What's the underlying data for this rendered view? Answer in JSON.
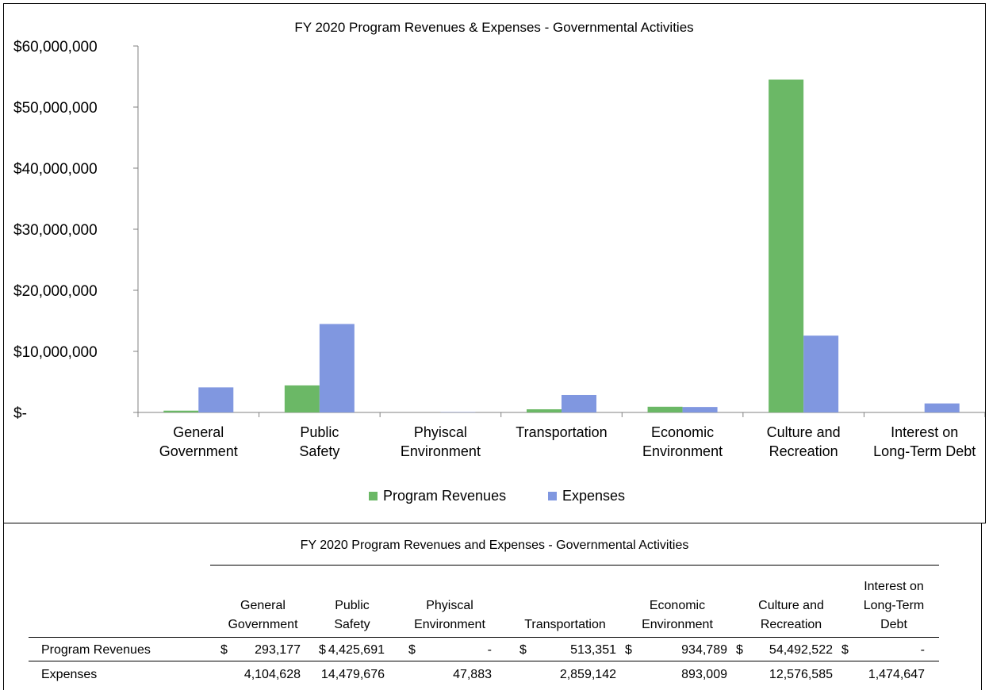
{
  "chart_data": {
    "type": "bar",
    "title": "FY 2020 Program Revenues & Expenses - Governmental  Activities",
    "categories": [
      [
        "General",
        "Government"
      ],
      [
        "Public",
        "Safety"
      ],
      [
        "Phyiscal",
        "Environment"
      ],
      [
        "Transportation"
      ],
      [
        "Economic",
        "Environment"
      ],
      [
        "Culture and",
        "Recreation"
      ],
      [
        "Interest on",
        "Long-Term Debt"
      ]
    ],
    "series": [
      {
        "name": "Program Revenues",
        "color": "#6bb866",
        "values": [
          293177,
          4425691,
          0,
          513351,
          934789,
          54492522,
          0
        ]
      },
      {
        "name": "Expenses",
        "color": "#8097e0",
        "values": [
          4104628,
          14479676,
          47883,
          2859142,
          893009,
          12576585,
          1474647
        ]
      }
    ],
    "y_ticks": [
      "$-",
      "$10,000,000",
      "$20,000,000",
      "$30,000,000",
      "$40,000,000",
      "$50,000,000",
      "$60,000,000"
    ],
    "ylim": [
      0,
      60000000
    ],
    "grid": false,
    "legend": "bottom-center"
  },
  "table": {
    "title": "FY 2020 Program Revenues and Expenses - Governmental Activities",
    "columns": [
      [
        "General",
        "Government"
      ],
      [
        "Public",
        "Safety"
      ],
      [
        "Phyiscal",
        "Environment"
      ],
      [
        "Transportation"
      ],
      [
        "Economic",
        "Environment"
      ],
      [
        "Culture and",
        "Recreation"
      ],
      [
        "Interest on",
        "Long-Term",
        "Debt"
      ]
    ],
    "rows": [
      {
        "label": "Program Revenues",
        "dollar_signs": [
          "$",
          "$",
          "$",
          "$",
          "$",
          "$",
          "$"
        ],
        "values": [
          "293,177",
          "4,425,691",
          "-",
          "513,351",
          "934,789",
          "54,492,522",
          "-"
        ]
      },
      {
        "label": "Expenses",
        "dollar_signs": [
          "",
          "",
          "",
          "",
          "",
          "",
          ""
        ],
        "values": [
          "4,104,628",
          "14,479,676",
          "47,883",
          "2,859,142",
          "893,009",
          "12,576,585",
          "1,474,647"
        ]
      }
    ]
  }
}
